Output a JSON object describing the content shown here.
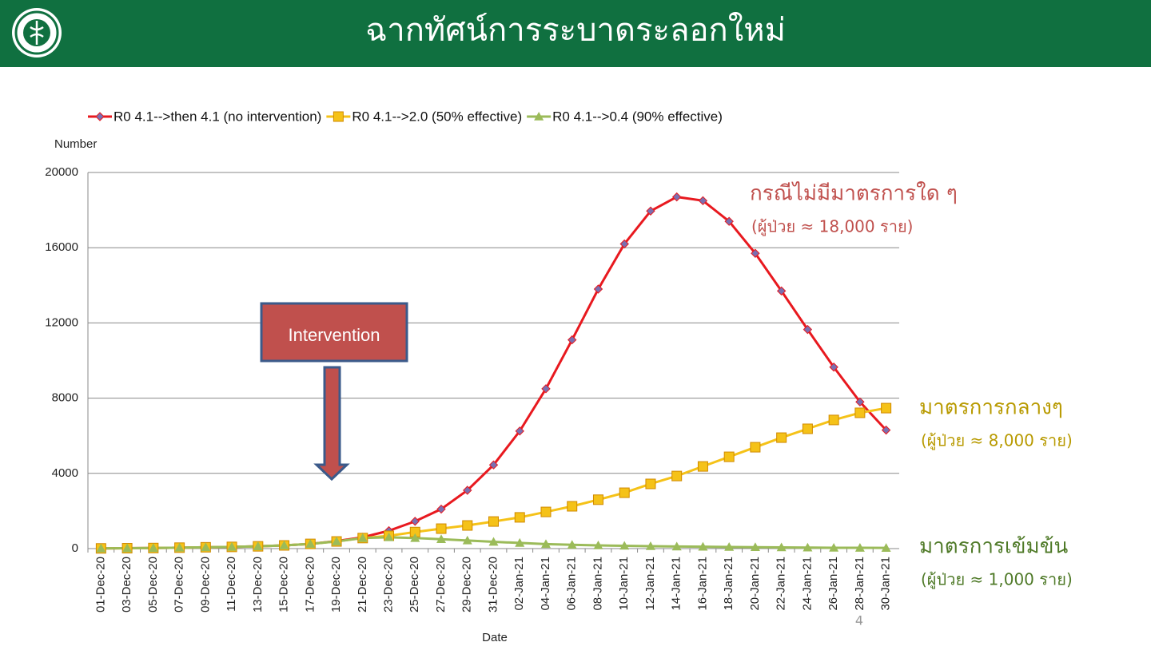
{
  "header": {
    "title": "ฉากทัศน์การระบาดระลอกใหม่"
  },
  "page_number": "4",
  "intervention": {
    "label": "Intervention"
  },
  "chart_data": {
    "type": "line",
    "y_axis_label": "Number",
    "x_axis_label": "Date",
    "categories": [
      "01-Dec-20",
      "03-Dec-20",
      "05-Dec-20",
      "07-Dec-20",
      "09-Dec-20",
      "11-Dec-20",
      "13-Dec-20",
      "15-Dec-20",
      "17-Dec-20",
      "19-Dec-20",
      "21-Dec-20",
      "23-Dec-20",
      "25-Dec-20",
      "27-Dec-20",
      "29-Dec-20",
      "31-Dec-20",
      "02-Jan-21",
      "04-Jan-21",
      "06-Jan-21",
      "08-Jan-21",
      "10-Jan-21",
      "12-Jan-21",
      "14-Jan-21",
      "16-Jan-21",
      "18-Jan-21",
      "20-Jan-21",
      "22-Jan-21",
      "24-Jan-21",
      "26-Jan-21",
      "28-Jan-21",
      "30-Jan-21"
    ],
    "series": [
      {
        "name": "R0 4.1-->then 4.1 (no intervention)",
        "color": "#e8191f",
        "marker": "diamond",
        "values": [
          10,
          20,
          30,
          50,
          70,
          90,
          120,
          170,
          250,
          400,
          600,
          950,
          1450,
          2100,
          3100,
          4450,
          6250,
          8500,
          11100,
          13800,
          16200,
          17950,
          18700,
          18500,
          17400,
          15700,
          13700,
          11650,
          9650,
          7800,
          6300
        ]
      },
      {
        "name": "R0 4.1-->2.0 (50% effective)",
        "color": "#f5c218",
        "marker": "square",
        "values": [
          10,
          20,
          30,
          50,
          70,
          90,
          120,
          170,
          250,
          380,
          560,
          680,
          880,
          1060,
          1230,
          1440,
          1660,
          1950,
          2250,
          2600,
          2970,
          3440,
          3860,
          4370,
          4880,
          5390,
          5900,
          6370,
          6840,
          7220,
          7470
        ]
      },
      {
        "name": "R0 4.1-->0.4 (90% effective)",
        "color": "#9bbb59",
        "marker": "triangle",
        "values": [
          10,
          20,
          30,
          50,
          70,
          90,
          120,
          170,
          250,
          380,
          560,
          600,
          560,
          500,
          430,
          360,
          300,
          240,
          200,
          170,
          150,
          130,
          110,
          100,
          85,
          75,
          65,
          55,
          45,
          40,
          35
        ]
      }
    ],
    "ylim": [
      0,
      20000
    ],
    "yticks": [
      0,
      4000,
      8000,
      12000,
      16000,
      20000
    ],
    "grid": true,
    "legend": "top",
    "annotations": [
      {
        "text": "กรณีไม่มีมาตรการใด ๆ",
        "color": "#c0504d"
      },
      {
        "text": "(ผู้ป่วย ≈ 18,000 ราย)",
        "color": "#c0504d"
      },
      {
        "text": "มาตรการกลางๆ",
        "color": "#b89a00"
      },
      {
        "text": "(ผู้ป่วย ≈ 8,000 ราย)",
        "color": "#b89a00"
      },
      {
        "text": "มาตรการเข้มข้น",
        "color": "#4f7a28"
      },
      {
        "text": "(ผู้ป่วย ≈  1,000 ราย)",
        "color": "#4f7a28"
      }
    ]
  }
}
